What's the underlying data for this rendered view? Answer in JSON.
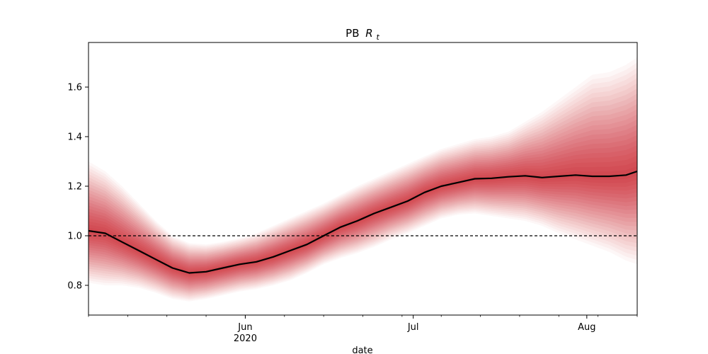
{
  "chart_data": {
    "type": "area",
    "title_prefix": "PB",
    "title_symbol": "R",
    "title_subscript": "t",
    "xlabel": "date",
    "ylabel": "",
    "x_start": "2020-05-04",
    "x_end": "2020-08-10",
    "ylim": [
      0.68,
      1.78
    ],
    "yticks": [
      0.8,
      1.0,
      1.2,
      1.4,
      1.6
    ],
    "x_major_ticks": [
      {
        "date": "2020-06-01",
        "label": "Jun",
        "sublabel": "2020"
      },
      {
        "date": "2020-07-01",
        "label": "Jul",
        "sublabel": ""
      },
      {
        "date": "2020-08-01",
        "label": "Aug",
        "sublabel": ""
      }
    ],
    "reference_line": 1.0,
    "band_color": "#c8141e",
    "median_color": "#000000",
    "series": [
      {
        "x": [
          "2020-05-04",
          "2020-05-07",
          "2020-05-10",
          "2020-05-13",
          "2020-05-16",
          "2020-05-19",
          "2020-05-22",
          "2020-05-25",
          "2020-05-28",
          "2020-05-31",
          "2020-06-03",
          "2020-06-06",
          "2020-06-09",
          "2020-06-12",
          "2020-06-15",
          "2020-06-18",
          "2020-06-21",
          "2020-06-24",
          "2020-06-27",
          "2020-06-30",
          "2020-07-03",
          "2020-07-06",
          "2020-07-09",
          "2020-07-12",
          "2020-07-15",
          "2020-07-18",
          "2020-07-21",
          "2020-07-24",
          "2020-07-27",
          "2020-07-30",
          "2020-08-02",
          "2020-08-05",
          "2020-08-08",
          "2020-08-10"
        ],
        "median": [
          1.02,
          1.01,
          0.975,
          0.94,
          0.905,
          0.87,
          0.85,
          0.855,
          0.87,
          0.885,
          0.895,
          0.915,
          0.94,
          0.965,
          1.0,
          1.035,
          1.06,
          1.09,
          1.115,
          1.14,
          1.175,
          1.2,
          1.215,
          1.23,
          1.232,
          1.238,
          1.242,
          1.235,
          1.24,
          1.245,
          1.24,
          1.24,
          1.245,
          1.26
        ],
        "lower_95": [
          0.81,
          0.8,
          0.8,
          0.79,
          0.77,
          0.745,
          0.735,
          0.745,
          0.76,
          0.775,
          0.785,
          0.8,
          0.82,
          0.85,
          0.885,
          0.91,
          0.93,
          0.955,
          0.985,
          1.01,
          1.04,
          1.07,
          1.085,
          1.09,
          1.08,
          1.07,
          1.06,
          1.04,
          1.01,
          0.985,
          0.96,
          0.935,
          0.9,
          0.885
        ],
        "upper_95": [
          1.3,
          1.26,
          1.2,
          1.13,
          1.06,
          1.0,
          0.97,
          0.965,
          0.975,
          0.99,
          1.01,
          1.04,
          1.07,
          1.1,
          1.13,
          1.165,
          1.2,
          1.23,
          1.26,
          1.29,
          1.32,
          1.35,
          1.37,
          1.39,
          1.4,
          1.42,
          1.46,
          1.5,
          1.55,
          1.6,
          1.65,
          1.66,
          1.69,
          1.72
        ]
      }
    ]
  }
}
